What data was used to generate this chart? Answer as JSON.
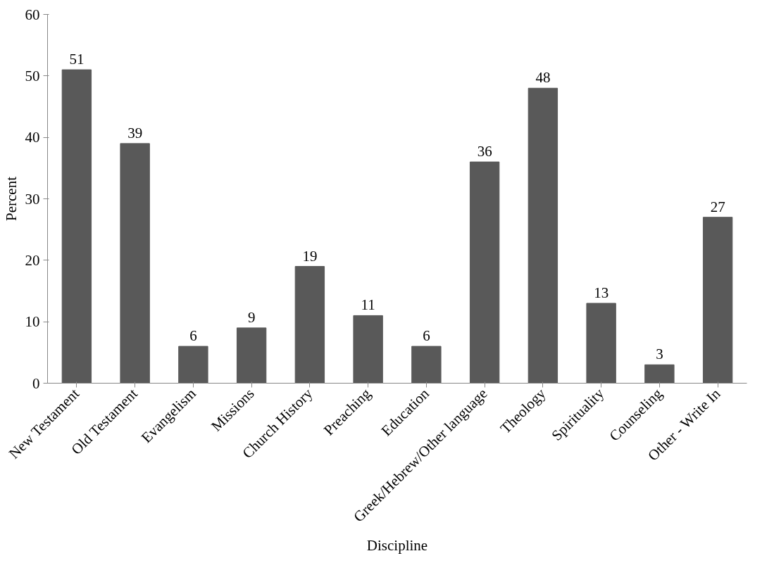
{
  "chart_data": {
    "type": "bar",
    "xlabel": "Discipline",
    "ylabel": "Percent",
    "categories": [
      "New Testament",
      "Old Testament",
      "Evangelism",
      "Missions",
      "Church History",
      "Preaching",
      "Education",
      "Greek/Hebrew/Other language",
      "Theology",
      "Spirituality",
      "Counseling",
      "Other - Write In"
    ],
    "values": [
      51,
      39,
      6,
      9,
      19,
      11,
      6,
      36,
      48,
      13,
      3,
      27
    ],
    "color": "#595959",
    "ylim": [
      0,
      60
    ],
    "yticks": [
      0,
      10,
      20,
      30,
      40,
      50,
      60
    ],
    "grid": false,
    "data_labels": true
  }
}
